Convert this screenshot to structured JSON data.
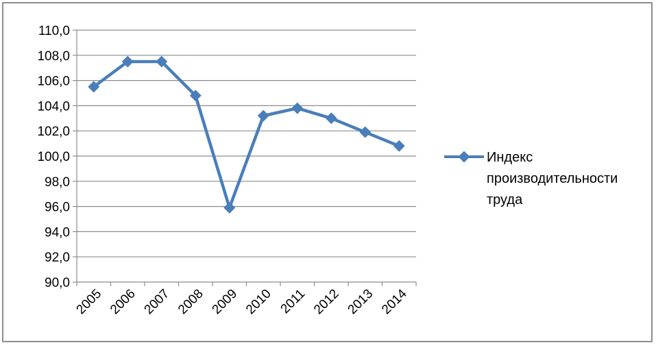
{
  "chart_data": {
    "type": "line",
    "categories": [
      "2005",
      "2006",
      "2007",
      "2008",
      "2009",
      "2010",
      "2011",
      "2012",
      "2013",
      "2014"
    ],
    "series": [
      {
        "name": "Индекс производительности труда",
        "values": [
          105.5,
          107.5,
          107.5,
          104.8,
          95.9,
          103.2,
          103.8,
          103.0,
          101.9,
          100.8
        ],
        "color": "#4a7ebb",
        "marker": "diamond"
      }
    ],
    "y_ticks": [
      "90,0",
      "92,0",
      "94,0",
      "96,0",
      "98,0",
      "100,0",
      "102,0",
      "104,0",
      "106,0",
      "108,0",
      "110,0"
    ],
    "ylim": [
      90,
      110
    ],
    "y_step": 2,
    "grid": true,
    "legend": {
      "position": "right",
      "lines": [
        "Индекс",
        "производительности",
        "труда"
      ]
    }
  }
}
